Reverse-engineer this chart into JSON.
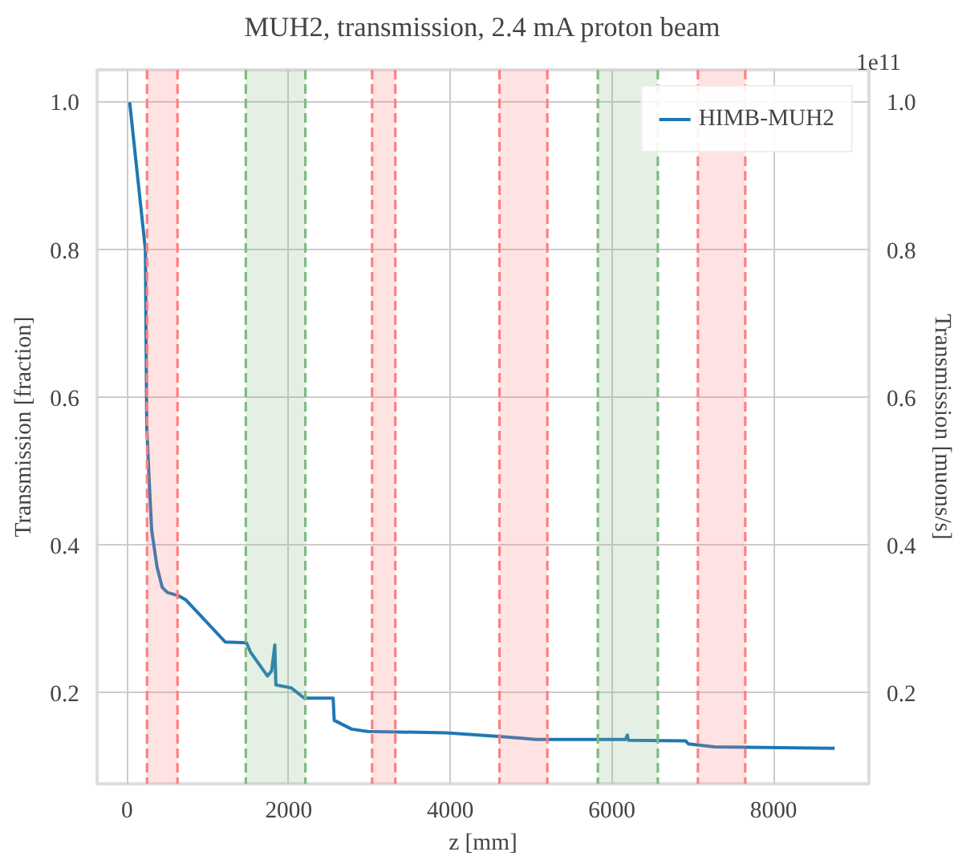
{
  "chart_data": {
    "type": "line",
    "title": "MUH2, transmission, 2.4 mA proton beam",
    "xlabel": "z [mm]",
    "ylabel": "Transmission [fraction]",
    "y2label": "Transmission [muons/s]",
    "annotations": [
      "1e11"
    ],
    "xlim": [
      -370,
      9180
    ],
    "xticks": [
      0,
      2000,
      4000,
      6000,
      8000
    ],
    "ylim": [
      0.077,
      1.044
    ],
    "yticks": [
      0.2,
      0.4,
      0.6,
      0.8,
      {
        "value": 1,
        "label": "1.0"
      }
    ],
    "y2lim": [
      0.077,
      1.044
    ],
    "y2ticks": [
      0.2,
      0.4,
      0.6,
      0.8,
      {
        "value": 1,
        "label": "1.0"
      }
    ],
    "ref_lines": [
      {
        "axis": "x",
        "value": 248,
        "color": "#ff8080",
        "line_style": "dashed"
      },
      {
        "axis": "x",
        "value": 625,
        "color": "#ff8080",
        "line_style": "dashed"
      },
      {
        "axis": "x",
        "value": 1470,
        "color": "#80bb80",
        "line_style": "dashed"
      },
      {
        "axis": "x",
        "value": 2207,
        "color": "#80bb80",
        "line_style": "dashed"
      },
      {
        "axis": "x",
        "value": 3033,
        "color": "#ff8080",
        "line_style": "dashed"
      },
      {
        "axis": "x",
        "value": 3320,
        "color": "#ff8080",
        "line_style": "dashed"
      },
      {
        "axis": "x",
        "value": 4609,
        "color": "#ff8080",
        "line_style": "dashed"
      },
      {
        "axis": "x",
        "value": 5201,
        "color": "#ff8080",
        "line_style": "dashed"
      },
      {
        "axis": "x",
        "value": 5826,
        "color": "#80bb80",
        "line_style": "dashed"
      },
      {
        "axis": "x",
        "value": 6568,
        "color": "#80bb80",
        "line_style": "dashed"
      },
      {
        "axis": "x",
        "value": 7064,
        "color": "#ff8080",
        "line_style": "dashed"
      },
      {
        "axis": "x",
        "value": 7650,
        "color": "#ff8080",
        "line_style": "dashed"
      }
    ],
    "grid": true,
    "legend": "top right",
    "line_style": "solid",
    "bands": [
      {
        "axis": "x",
        "from": 248,
        "to": 625,
        "color": "#ff8080"
      },
      {
        "axis": "x",
        "from": 1470,
        "to": 2207,
        "color": "#80bb80"
      },
      {
        "axis": "x",
        "from": 3033,
        "to": 3320,
        "color": "#ff8080"
      },
      {
        "axis": "x",
        "from": 4609,
        "to": 5201,
        "color": "#ff8080"
      },
      {
        "axis": "x",
        "from": 5826,
        "to": 6568,
        "color": "#80bb80"
      },
      {
        "axis": "x",
        "from": 7064,
        "to": 7650,
        "color": "#ff8080"
      }
    ],
    "series": [
      {
        "name": "HIMB-MUH2",
        "color": "#1f77b4",
        "x": [
          33,
          228,
          245,
          273,
          306,
          371,
          436,
          501,
          631,
          729,
          1217,
          1478,
          1530,
          1738,
          1790,
          1829,
          1842,
          2031,
          2194,
          2551,
          2564,
          2780,
          2975,
          3952,
          4603,
          4863,
          5059,
          6165,
          6191,
          6204,
          6914,
          6947,
          7271,
          8756
        ],
        "values": [
          1.0,
          0.8,
          0.561,
          0.491,
          0.42,
          0.371,
          0.343,
          0.336,
          0.332,
          0.326,
          0.269,
          0.268,
          0.255,
          0.223,
          0.23,
          0.265,
          0.211,
          0.207,
          0.193,
          0.193,
          0.163,
          0.151,
          0.148,
          0.146,
          0.141,
          0.139,
          0.137,
          0.137,
          0.143,
          0.136,
          0.135,
          0.131,
          0.127,
          0.125
        ]
      }
    ]
  }
}
